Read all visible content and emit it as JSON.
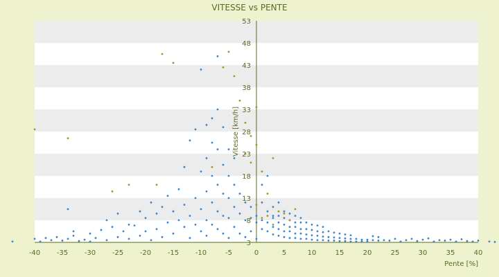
{
  "chart_data": {
    "type": "scatter",
    "title": "VITESSE vs PENTE",
    "xlabel": "Pente [%]",
    "ylabel": "Vitesse [km/h]",
    "xlim": [
      -40,
      40
    ],
    "ylim": [
      3,
      53
    ],
    "x_ticks": [
      "-40",
      "-35",
      "-30",
      "-25",
      "-20",
      "-15",
      "-10",
      "-5",
      "0",
      "5",
      "10",
      "15",
      "20",
      "25",
      "30",
      "35",
      "40"
    ],
    "y_ticks": [
      "3",
      "8",
      "13",
      "18",
      "23",
      "28",
      "33",
      "38",
      "43",
      "48",
      "53"
    ],
    "grid": "horizontal bands",
    "legend": "none",
    "colors": {
      "background": "#eef2cf",
      "plot_band_light": "#ffffff",
      "plot_band_dark": "#ececec",
      "axis": "#5a6a20",
      "series_main": "#3a86cc",
      "series_secondary": "#9a9a2a"
    },
    "series": [
      {
        "color": "#3a86cc",
        "x": [
          -44,
          -40,
          -39,
          -38,
          -37,
          -36,
          -35,
          -34,
          -34,
          -33,
          -33,
          -32,
          -31,
          -30,
          -30,
          -29,
          -28,
          -27,
          -27,
          -26,
          -25,
          -25,
          -24,
          -23,
          -23,
          -22,
          -21,
          -21,
          -20,
          -20,
          -19,
          -19,
          -18,
          -18,
          -17,
          -17,
          -16,
          -16,
          -15,
          -15,
          -14,
          -14,
          -13,
          -13,
          -13,
          -12,
          -12,
          -12,
          -11,
          -11,
          -11,
          -10,
          -10,
          -10,
          -10,
          -9,
          -9,
          -9,
          -9,
          -9,
          -8,
          -8,
          -8,
          -8,
          -8,
          -7,
          -7,
          -7,
          -7,
          -7,
          -7,
          -6,
          -6,
          -6,
          -6,
          -6,
          -5,
          -5,
          -5,
          -5,
          -5,
          -4,
          -4,
          -4,
          -4,
          -3,
          -3,
          -3,
          -2,
          -2,
          -2,
          -1,
          -1,
          -1,
          0,
          0,
          0,
          1,
          1,
          1,
          1,
          2,
          2,
          2,
          2,
          3,
          3,
          3,
          3,
          3,
          4,
          4,
          4,
          4,
          4,
          5,
          5,
          5,
          5,
          5,
          6,
          6,
          6,
          6,
          6,
          7,
          7,
          7,
          7,
          7,
          8,
          8,
          8,
          8,
          8,
          9,
          9,
          9,
          9,
          10,
          10,
          10,
          10,
          11,
          11,
          11,
          11,
          12,
          12,
          12,
          12,
          13,
          13,
          13,
          14,
          14,
          14,
          15,
          15,
          15,
          16,
          16,
          16,
          17,
          17,
          17,
          18,
          18,
          19,
          19,
          20,
          20,
          21,
          21,
          22,
          22,
          23,
          24,
          25,
          26,
          27,
          28,
          29,
          30,
          31,
          32,
          33,
          34,
          35,
          36,
          37,
          38,
          39,
          40,
          42,
          43
        ],
        "y": [
          3.2,
          3.8,
          3.2,
          4.0,
          3.5,
          4.2,
          3.4,
          3.8,
          10.5,
          5.5,
          4.5,
          3.3,
          3.6,
          5.0,
          3.2,
          4.0,
          5.8,
          3.5,
          8.0,
          6.5,
          4.2,
          9.5,
          5.5,
          3.8,
          7.0,
          6.8,
          4.5,
          10.0,
          5.5,
          8.5,
          3.5,
          12.0,
          6.0,
          9.5,
          4.2,
          11.0,
          7.5,
          13.5,
          5.0,
          10.0,
          8.0,
          15.0,
          6.5,
          11.5,
          20.0,
          4.0,
          9.0,
          26.0,
          7.0,
          13.0,
          28.5,
          5.5,
          10.5,
          19.0,
          42.0,
          8.0,
          14.5,
          22.0,
          29.5,
          4.5,
          7.0,
          12.0,
          18.0,
          25.5,
          31.0,
          6.0,
          10.0,
          16.0,
          24.0,
          33.0,
          45.0,
          5.0,
          9.0,
          14.0,
          20.5,
          29.0,
          4.0,
          8.5,
          13.0,
          18.0,
          24.0,
          6.5,
          11.0,
          16.0,
          22.0,
          5.0,
          9.5,
          14.0,
          4.2,
          8.0,
          12.0,
          5.5,
          8.5,
          11.0,
          3.8,
          7.5,
          9.0,
          6.0,
          8.0,
          12.0,
          16.0,
          5.5,
          7.5,
          10.0,
          18.0,
          4.8,
          6.5,
          8.5,
          11.0,
          9.0,
          4.5,
          6.0,
          7.5,
          9.0,
          12.0,
          4.2,
          5.5,
          7.0,
          8.5,
          10.0,
          4.0,
          5.5,
          6.5,
          8.0,
          9.5,
          4.0,
          5.0,
          6.5,
          7.5,
          9.0,
          3.8,
          5.0,
          6.0,
          7.5,
          8.5,
          3.8,
          4.8,
          6.0,
          7.5,
          3.6,
          4.6,
          5.8,
          7.0,
          3.5,
          4.5,
          5.5,
          6.8,
          3.5,
          4.3,
          5.3,
          6.5,
          3.4,
          4.2,
          5.5,
          3.4,
          4.1,
          5.2,
          3.3,
          4.0,
          5.0,
          3.3,
          3.9,
          4.8,
          3.2,
          3.8,
          4.6,
          3.2,
          3.8,
          3.2,
          3.6,
          3.2,
          3.6,
          3.5,
          4.4,
          3.4,
          4.2,
          3.5,
          3.4,
          3.8,
          3.2,
          3.5,
          3.8,
          3.3,
          3.6,
          3.9,
          3.2,
          3.5,
          3.4,
          3.6,
          3.2,
          3.7,
          3.3,
          3.2,
          3.4,
          3.2,
          3.1
        ]
      },
      {
        "color": "#9a9a2a",
        "x": [
          -40,
          -34,
          -26,
          -23,
          -18,
          -17,
          -15,
          -8,
          -6,
          -5,
          -4,
          -3,
          -2,
          -2,
          -1,
          -1,
          0,
          0,
          0,
          1,
          1,
          2,
          2,
          3,
          3,
          4,
          5,
          6,
          7
        ],
        "y": [
          28.5,
          26.5,
          14.5,
          16.0,
          16.0,
          45.5,
          43.5,
          20.0,
          42.5,
          46.0,
          40.5,
          35.0,
          23.0,
          30.0,
          27.0,
          21.0,
          33.5,
          25.0,
          11.5,
          19.0,
          8.5,
          14.0,
          9.0,
          22.0,
          7.0,
          10.0,
          9.5,
          8.0,
          10.5
        ]
      }
    ]
  }
}
